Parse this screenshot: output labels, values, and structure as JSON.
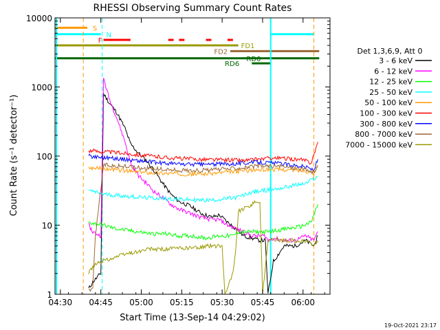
{
  "chart_data": {
    "type": "line",
    "title": "RHESSI Observing Summary Count Rates",
    "xlabel": "Start Time (13-Sep-14 04:29:02)",
    "ylabel": "Count Rate (s⁻¹ detector⁻¹)",
    "yscale": "log",
    "xlim_minutes": [
      -1,
      101
    ],
    "ylim": [
      1,
      10000
    ],
    "x_ticks": [
      {
        "t": 1,
        "label": "04:30"
      },
      {
        "t": 16,
        "label": "04:45"
      },
      {
        "t": 31,
        "label": "05:00"
      },
      {
        "t": 46,
        "label": "05:15"
      },
      {
        "t": 61,
        "label": "05:30"
      },
      {
        "t": 76,
        "label": "05:45"
      },
      {
        "t": 91,
        "label": "06:00"
      }
    ],
    "y_ticks": [
      {
        "v": 1,
        "label": "1"
      },
      {
        "v": 10,
        "label": "10"
      },
      {
        "v": 100,
        "label": "100"
      },
      {
        "v": 1000,
        "label": "1000"
      },
      {
        "v": 10000,
        "label": "10000"
      }
    ],
    "legend_title": "Det 1,3,6,9, Att 0",
    "legend_position": "right",
    "footer": "19-Oct-2021 23:17",
    "series": [
      {
        "name": "3 - 6 keV",
        "color": "#000000",
        "points": [
          [
            11.5,
            1.2
          ],
          [
            13,
            1.5
          ],
          [
            16,
            2
          ],
          [
            17,
            800
          ],
          [
            19,
            600
          ],
          [
            22,
            420
          ],
          [
            25,
            250
          ],
          [
            27,
            150
          ],
          [
            30,
            110
          ],
          [
            33,
            85
          ],
          [
            36,
            60
          ],
          [
            39,
            40
          ],
          [
            42,
            28
          ],
          [
            45,
            22
          ],
          [
            49,
            19
          ],
          [
            53,
            15
          ],
          [
            57,
            13
          ],
          [
            60,
            14
          ],
          [
            63,
            11
          ],
          [
            66,
            9
          ],
          [
            69,
            7
          ],
          [
            72,
            6.5
          ],
          [
            75,
            6
          ],
          [
            77,
            6
          ],
          [
            78,
            1
          ],
          [
            80,
            3
          ],
          [
            84,
            5
          ],
          [
            88,
            5
          ],
          [
            92,
            6
          ],
          [
            95,
            5
          ],
          [
            96.5,
            7
          ]
        ]
      },
      {
        "name": "6 - 12 keV",
        "color": "#ff00ff",
        "points": [
          [
            11.5,
            10
          ],
          [
            13,
            8
          ],
          [
            16,
            7
          ],
          [
            17,
            1350
          ],
          [
            19,
            700
          ],
          [
            22,
            350
          ],
          [
            25,
            160
          ],
          [
            27,
            80
          ],
          [
            30,
            52
          ],
          [
            33,
            40
          ],
          [
            36,
            30
          ],
          [
            39,
            25
          ],
          [
            42,
            20
          ],
          [
            45,
            17
          ],
          [
            49,
            15
          ],
          [
            53,
            13
          ],
          [
            57,
            12
          ],
          [
            60,
            12
          ],
          [
            63,
            10
          ],
          [
            66,
            9
          ],
          [
            69,
            8
          ],
          [
            72,
            7
          ],
          [
            75,
            7
          ],
          [
            77,
            7
          ],
          [
            78,
            6
          ],
          [
            80,
            6.5
          ],
          [
            84,
            6
          ],
          [
            88,
            6
          ],
          [
            92,
            7
          ],
          [
            95,
            6
          ],
          [
            96.5,
            8
          ]
        ]
      },
      {
        "name": "12 - 25 keV",
        "color": "#00ff00",
        "points": [
          [
            11.5,
            11
          ],
          [
            14,
            10.5
          ],
          [
            17,
            10
          ],
          [
            21,
            9
          ],
          [
            25,
            8.5
          ],
          [
            30,
            8
          ],
          [
            35,
            7.5
          ],
          [
            40,
            7.5
          ],
          [
            45,
            7
          ],
          [
            50,
            7
          ],
          [
            55,
            6.5
          ],
          [
            60,
            7
          ],
          [
            65,
            7
          ],
          [
            67,
            8
          ],
          [
            70,
            8
          ],
          [
            74,
            8
          ],
          [
            78,
            8
          ],
          [
            82,
            8.5
          ],
          [
            86,
            9
          ],
          [
            90,
            9.5
          ],
          [
            94,
            11
          ],
          [
            96.5,
            20
          ]
        ]
      },
      {
        "name": "25 - 50 keV",
        "color": "#00ffff",
        "points": [
          [
            11.5,
            32
          ],
          [
            14,
            30
          ],
          [
            17,
            28
          ],
          [
            22,
            27
          ],
          [
            27,
            26
          ],
          [
            32,
            25
          ],
          [
            37,
            24.5
          ],
          [
            42,
            24
          ],
          [
            47,
            23.5
          ],
          [
            52,
            23
          ],
          [
            57,
            23
          ],
          [
            62,
            24
          ],
          [
            66,
            25
          ],
          [
            69,
            27
          ],
          [
            72,
            30
          ],
          [
            77,
            32
          ],
          [
            80,
            33
          ],
          [
            84,
            35
          ],
          [
            88,
            38
          ],
          [
            92,
            40
          ],
          [
            94,
            45
          ],
          [
            96.5,
            50
          ]
        ]
      },
      {
        "name": "50 - 100 keV",
        "color": "#ff9900",
        "points": [
          [
            11.5,
            68
          ],
          [
            14,
            67
          ],
          [
            17,
            66
          ],
          [
            22,
            63
          ],
          [
            27,
            60
          ],
          [
            32,
            58
          ],
          [
            37,
            57
          ],
          [
            42,
            56
          ],
          [
            47,
            55
          ],
          [
            52,
            55
          ],
          [
            57,
            56
          ],
          [
            62,
            58
          ],
          [
            66,
            60
          ],
          [
            70,
            62
          ],
          [
            74,
            63
          ],
          [
            78,
            64
          ],
          [
            82,
            64
          ],
          [
            86,
            63
          ],
          [
            90,
            62
          ],
          [
            93,
            60
          ],
          [
            95,
            55
          ],
          [
            96.5,
            75
          ]
        ]
      },
      {
        "name": "100 - 300 keV",
        "color": "#ff0000",
        "points": [
          [
            11.5,
            120
          ],
          [
            14,
            118
          ],
          [
            17,
            116
          ],
          [
            22,
            112
          ],
          [
            27,
            108
          ],
          [
            32,
            102
          ],
          [
            37,
            98
          ],
          [
            42,
            94
          ],
          [
            47,
            92
          ],
          [
            52,
            90
          ],
          [
            57,
            89
          ],
          [
            62,
            88
          ],
          [
            66,
            88
          ],
          [
            69,
            86
          ],
          [
            72,
            88
          ],
          [
            77,
            92
          ],
          [
            80,
            94
          ],
          [
            84,
            92
          ],
          [
            88,
            90
          ],
          [
            92,
            86
          ],
          [
            94,
            80
          ],
          [
            95.5,
            120
          ],
          [
            96.5,
            160
          ]
        ]
      },
      {
        "name": "300 - 800 keV",
        "color": "#0000ff",
        "points": [
          [
            11.5,
            100
          ],
          [
            14,
            98
          ],
          [
            17,
            96
          ],
          [
            22,
            92
          ],
          [
            27,
            88
          ],
          [
            32,
            84
          ],
          [
            37,
            80
          ],
          [
            42,
            78
          ],
          [
            47,
            76
          ],
          [
            52,
            76
          ],
          [
            57,
            76
          ],
          [
            62,
            77
          ],
          [
            66,
            78
          ],
          [
            70,
            80
          ],
          [
            74,
            82
          ],
          [
            78,
            80
          ],
          [
            82,
            78
          ],
          [
            86,
            75
          ],
          [
            90,
            72
          ],
          [
            93,
            68
          ],
          [
            95,
            62
          ],
          [
            96.5,
            90
          ]
        ]
      },
      {
        "name": "800 - 7000 keV",
        "color": "#996633",
        "points": [
          [
            11.5,
            1.1
          ],
          [
            13,
            1.2
          ],
          [
            14,
            7
          ],
          [
            17,
            75
          ],
          [
            22,
            72
          ],
          [
            27,
            70
          ],
          [
            32,
            67
          ],
          [
            37,
            65
          ],
          [
            42,
            63
          ],
          [
            47,
            62
          ],
          [
            52,
            62
          ],
          [
            57,
            63
          ],
          [
            62,
            65
          ],
          [
            66,
            67
          ],
          [
            70,
            69
          ],
          [
            74,
            71
          ],
          [
            78,
            72
          ],
          [
            82,
            71
          ],
          [
            86,
            69
          ],
          [
            90,
            66
          ],
          [
            93,
            62
          ],
          [
            95,
            57
          ],
          [
            96.5,
            70
          ]
        ]
      },
      {
        "name": "7000 - 15000 keV",
        "color": "#999900",
        "points": [
          [
            11.5,
            2
          ],
          [
            13,
            2.5
          ],
          [
            16,
            3
          ],
          [
            19,
            3.2
          ],
          [
            22,
            3.5
          ],
          [
            25,
            3.8
          ],
          [
            28,
            4
          ],
          [
            31,
            4.2
          ],
          [
            34,
            4.5
          ],
          [
            37,
            4.5
          ],
          [
            40,
            4.5
          ],
          [
            43,
            4.6
          ],
          [
            46,
            4.6
          ],
          [
            49,
            4.7
          ],
          [
            52,
            4.7
          ],
          [
            55,
            5
          ],
          [
            58,
            5
          ],
          [
            61,
            5
          ],
          [
            62,
            1
          ],
          [
            65,
            2
          ],
          [
            66,
            4
          ],
          [
            67,
            16
          ],
          [
            69,
            17
          ],
          [
            70,
            18
          ],
          [
            72,
            20
          ],
          [
            74,
            22
          ],
          [
            75,
            22
          ],
          [
            76,
            1
          ],
          [
            78,
            6
          ],
          [
            81,
            6.2
          ],
          [
            84,
            6
          ],
          [
            87,
            6
          ],
          [
            90,
            5.8
          ],
          [
            93,
            5.8
          ],
          [
            95,
            5
          ],
          [
            96.5,
            6
          ]
        ]
      }
    ],
    "annotation_bars": [
      {
        "label": "S",
        "color": "#ff9900",
        "level": 7200,
        "segments": [
          [
            -1,
            11
          ]
        ],
        "label_t": 13
      },
      {
        "label": "N",
        "color": "#00ffff",
        "level": 5800,
        "segments": [
          [
            -1,
            16
          ],
          [
            79,
            95
          ]
        ],
        "label_t": 18
      },
      {
        "label": "F",
        "color": "#ff0000",
        "level": 4800,
        "segments": [
          [
            17,
            27
          ],
          [
            41,
            43
          ],
          [
            45,
            47
          ],
          [
            55,
            57
          ],
          [
            63,
            65
          ]
        ],
        "label_t": 15
      },
      {
        "label": "FD1",
        "color": "#999900",
        "level": 4000,
        "segments": [
          [
            -1,
            64
          ],
          [
            64,
            67
          ]
        ],
        "label_t": 68
      },
      {
        "label": "FD2",
        "color": "#996633",
        "level": 3300,
        "segments": [
          [
            64,
            97
          ]
        ],
        "label_t": 58
      },
      {
        "label": "RD0",
        "color": "#006600",
        "level": 2600,
        "segments": [
          [
            -1,
            97
          ]
        ],
        "label_t": 70
      },
      {
        "label": "RD6",
        "color": "#006600",
        "level": 2200,
        "segments": [
          [
            72,
            79
          ]
        ],
        "label_t": 62
      }
    ],
    "vertical_markers": [
      {
        "t": 9.5,
        "color": "#ff9900",
        "dash": true
      },
      {
        "t": 16.5,
        "color": "#00ffff",
        "dash": true
      },
      {
        "t": 95,
        "color": "#ff9900",
        "dash": true
      },
      {
        "t": -0.5,
        "color": "#00ffff",
        "dash": false
      },
      {
        "t": 79,
        "color": "#00ffff",
        "dash": false
      }
    ]
  }
}
